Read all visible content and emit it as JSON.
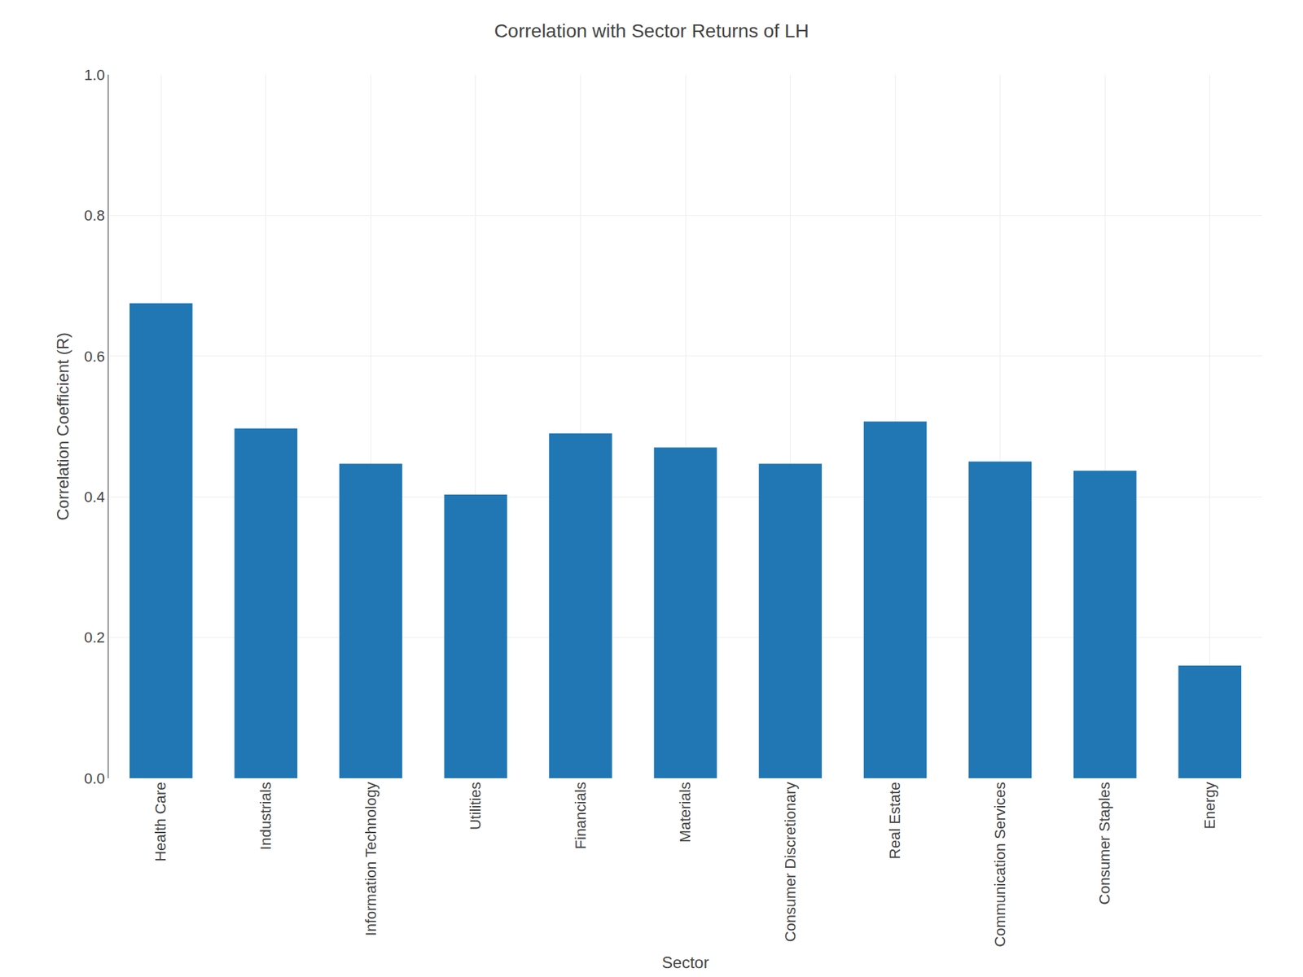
{
  "chart_data": {
    "type": "bar",
    "title": "Correlation with Sector Returns of LH",
    "xlabel": "Sector",
    "ylabel": "Correlation Coefficient (R)",
    "categories": [
      "Health Care",
      "Industrials",
      "Information Technology",
      "Utilities",
      "Financials",
      "Materials",
      "Consumer Discretionary",
      "Real Estate",
      "Communication Services",
      "Consumer Staples",
      "Energy"
    ],
    "values": [
      0.675,
      0.497,
      0.447,
      0.403,
      0.49,
      0.47,
      0.447,
      0.507,
      0.45,
      0.437,
      0.16
    ],
    "color": "#2077b4",
    "ylim": [
      0.0,
      1.0
    ],
    "yticks": [
      {
        "value": 0.0,
        "label": "0.0"
      },
      0.2,
      0.4,
      0.6,
      0.8,
      {
        "value": 1.0,
        "label": "1.0"
      }
    ],
    "grid": true
  }
}
